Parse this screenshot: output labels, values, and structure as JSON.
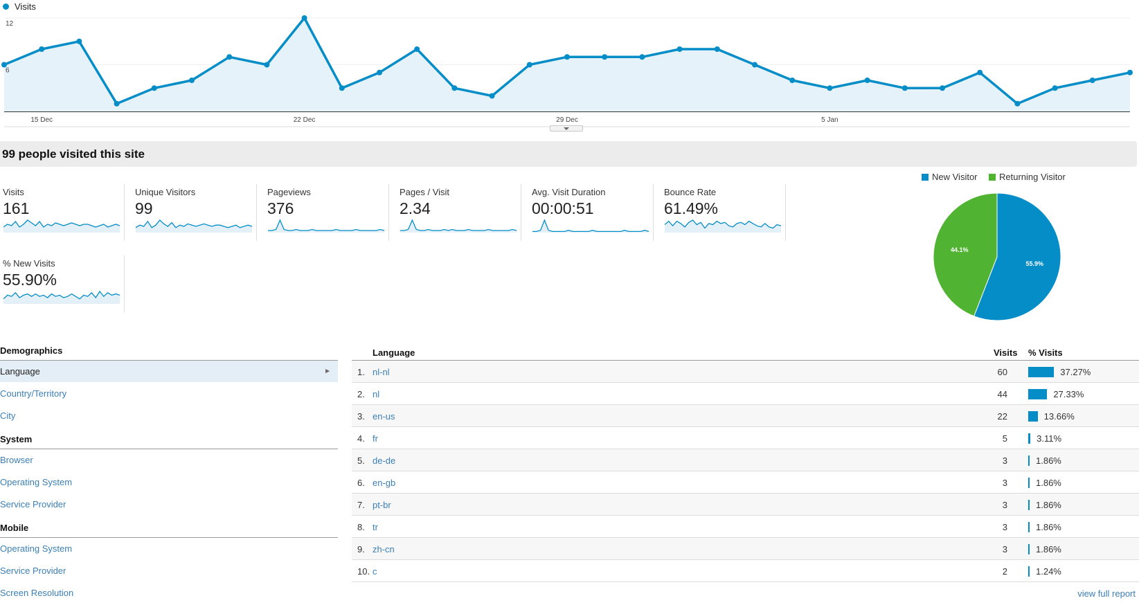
{
  "main_chart": {
    "legend": "Visits",
    "y_ticks": [
      "12",
      "6"
    ],
    "x_ticks": [
      "15 Dec",
      "22 Dec",
      "29 Dec",
      "5 Jan"
    ]
  },
  "chart_data": {
    "type": "area",
    "series": [
      {
        "name": "Visits",
        "values": [
          6,
          8,
          9,
          1,
          3,
          4,
          7,
          6,
          12,
          3,
          5,
          8,
          3,
          2,
          6,
          7,
          7,
          7,
          8,
          8,
          6,
          4,
          3,
          4,
          3,
          3,
          5,
          1,
          3,
          4,
          5
        ]
      }
    ],
    "ylim": [
      0,
      12
    ],
    "x_labels": [
      "15 Dec",
      "22 Dec",
      "29 Dec",
      "5 Jan"
    ],
    "grid": true
  },
  "summary": {
    "title": "99 people visited this site"
  },
  "metrics": [
    {
      "label": "Visits",
      "value": "161",
      "spark": [
        4,
        6,
        5,
        8,
        4,
        6,
        9,
        7,
        5,
        8,
        4,
        6,
        5,
        7,
        6,
        5,
        6,
        7,
        6,
        5,
        6,
        6,
        5,
        4,
        5,
        6,
        4,
        5,
        6,
        5
      ]
    },
    {
      "label": "Unique Visitors",
      "value": "99",
      "spark": [
        4,
        6,
        5,
        9,
        4,
        6,
        10,
        7,
        5,
        8,
        4,
        6,
        5,
        7,
        6,
        5,
        6,
        7,
        6,
        5,
        6,
        6,
        5,
        4,
        5,
        6,
        4,
        5,
        6,
        5
      ]
    },
    {
      "label": "Pageviews",
      "value": "376",
      "spark": [
        2,
        2,
        3,
        12,
        3,
        2,
        2,
        3,
        2,
        2,
        2,
        3,
        2,
        2,
        2,
        2,
        2,
        3,
        2,
        2,
        2,
        2,
        3,
        2,
        2,
        2,
        2,
        2,
        3,
        2
      ]
    },
    {
      "label": "Pages / Visit",
      "value": "2.34",
      "spark": [
        2,
        2,
        3,
        12,
        3,
        2,
        2,
        3,
        2,
        2,
        2,
        3,
        2,
        3,
        2,
        2,
        2,
        3,
        2,
        2,
        2,
        2,
        3,
        2,
        2,
        2,
        2,
        2,
        3,
        2
      ]
    },
    {
      "label": "Avg. Visit Duration",
      "value": "00:00:51",
      "spark": [
        1,
        1,
        2,
        11,
        2,
        1,
        1,
        1,
        1,
        2,
        1,
        1,
        1,
        1,
        1,
        2,
        1,
        1,
        1,
        1,
        1,
        1,
        1,
        2,
        1,
        1,
        1,
        1,
        2,
        1
      ]
    },
    {
      "label": "Bounce Rate",
      "value": "61.49%",
      "spark": [
        7,
        10,
        6,
        10,
        8,
        5,
        9,
        11,
        7,
        9,
        4,
        8,
        7,
        10,
        8,
        9,
        6,
        5,
        8,
        9,
        7,
        10,
        8,
        6,
        5,
        8,
        5,
        4,
        7,
        6
      ]
    },
    {
      "label": "% New Visits",
      "value": "55.90%",
      "spark": [
        4,
        7,
        6,
        9,
        5,
        7,
        8,
        6,
        8,
        6,
        7,
        5,
        8,
        6,
        7,
        5,
        6,
        8,
        6,
        4,
        7,
        6,
        9,
        5,
        10,
        6,
        9,
        7,
        8,
        7
      ]
    }
  ],
  "pie": {
    "legend": [
      {
        "label": "New Visitor",
        "color": "#058dc7"
      },
      {
        "label": "Returning Visitor",
        "color": "#50b432"
      }
    ],
    "slices": [
      {
        "label": "55.9%",
        "value": 55.9,
        "color": "#058dc7"
      },
      {
        "label": "44.1%",
        "value": 44.1,
        "color": "#50b432"
      }
    ]
  },
  "nav": {
    "demographics": "Demographics",
    "demographics_items": [
      "Language",
      "Country/Territory",
      "City"
    ],
    "system": "System",
    "system_items": [
      "Browser",
      "Operating System",
      "Service Provider"
    ],
    "mobile": "Mobile",
    "mobile_items": [
      "Operating System",
      "Service Provider",
      "Screen Resolution"
    ]
  },
  "table": {
    "headers": {
      "language": "Language",
      "visits": "Visits",
      "pct": "% Visits"
    },
    "rows": [
      {
        "idx": "1.",
        "lang": "nl-nl",
        "visits": "60",
        "pct": "37.27%",
        "share": 37.27
      },
      {
        "idx": "2.",
        "lang": "nl",
        "visits": "44",
        "pct": "27.33%",
        "share": 27.33
      },
      {
        "idx": "3.",
        "lang": "en-us",
        "visits": "22",
        "pct": "13.66%",
        "share": 13.66
      },
      {
        "idx": "4.",
        "lang": "fr",
        "visits": "5",
        "pct": "3.11%",
        "share": 3.11
      },
      {
        "idx": "5.",
        "lang": "de-de",
        "visits": "3",
        "pct": "1.86%",
        "share": 1.86
      },
      {
        "idx": "6.",
        "lang": "en-gb",
        "visits": "3",
        "pct": "1.86%",
        "share": 1.86
      },
      {
        "idx": "7.",
        "lang": "pt-br",
        "visits": "3",
        "pct": "1.86%",
        "share": 1.86
      },
      {
        "idx": "8.",
        "lang": "tr",
        "visits": "3",
        "pct": "1.86%",
        "share": 1.86
      },
      {
        "idx": "9.",
        "lang": "zh-cn",
        "visits": "3",
        "pct": "1.86%",
        "share": 1.86
      },
      {
        "idx": "10.",
        "lang": "c",
        "visits": "2",
        "pct": "1.24%",
        "share": 1.24
      }
    ],
    "view_full": "view full report"
  },
  "colors": {
    "accent": "#058dc7",
    "returning": "#50b432",
    "link": "#3b7fb6"
  }
}
